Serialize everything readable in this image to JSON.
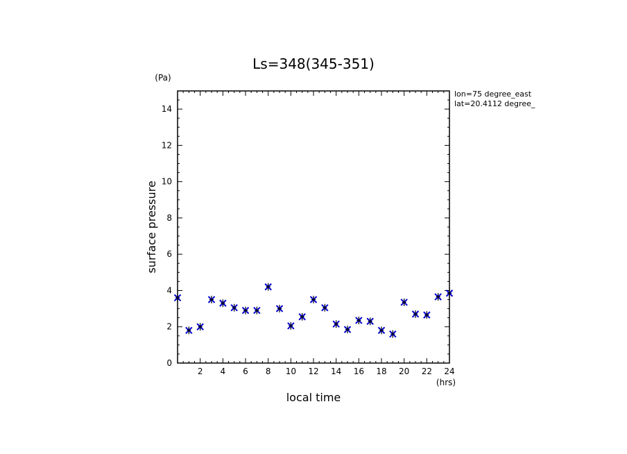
{
  "chart_data": {
    "type": "scatter",
    "title": "Ls=348(345-351)",
    "xlabel": "local time",
    "ylabel": "surface pressure",
    "x_unit": "(hrs)",
    "y_unit": "(Pa)",
    "xlim": [
      0,
      24
    ],
    "ylim": [
      0,
      15
    ],
    "x_ticks": [
      2,
      4,
      6,
      8,
      10,
      12,
      14,
      16,
      18,
      20,
      22,
      24
    ],
    "y_ticks": [
      0,
      2,
      4,
      6,
      8,
      10,
      12,
      14
    ],
    "grid": false,
    "annotations": [
      "lon=75 degree_east",
      "lat=20.4112 degree_"
    ],
    "marker_color": "#0000cc",
    "x": [
      0,
      1,
      2,
      3,
      4,
      5,
      6,
      7,
      8,
      9,
      10,
      11,
      12,
      13,
      14,
      15,
      16,
      17,
      18,
      19,
      20,
      21,
      22,
      23,
      24
    ],
    "y": [
      3.6,
      1.8,
      2.0,
      3.5,
      3.3,
      3.05,
      2.9,
      2.9,
      4.2,
      3.0,
      2.05,
      2.55,
      3.5,
      3.05,
      2.15,
      1.85,
      2.35,
      2.3,
      1.8,
      1.6,
      3.35,
      2.7,
      2.65,
      3.65,
      3.85
    ]
  }
}
